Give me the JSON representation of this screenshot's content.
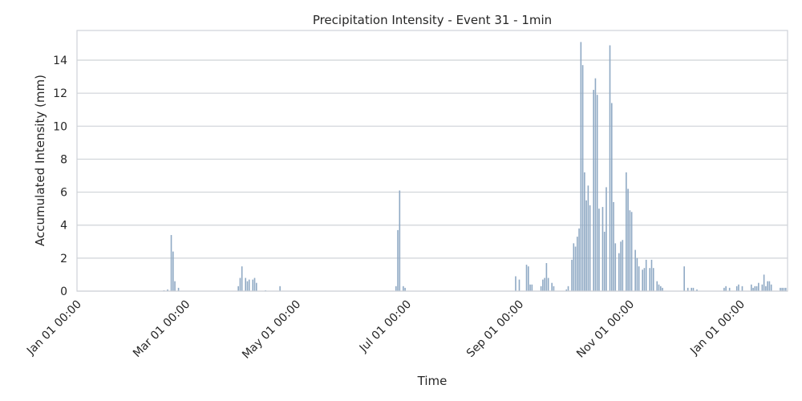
{
  "chart_data": {
    "type": "bar",
    "title": "Precipitation Intensity - Event 31 - 1min",
    "xlabel": "Time",
    "ylabel": "Accumulated Intensity (mm)",
    "ylim": [
      0,
      15.8
    ],
    "y_ticks": [
      0,
      2,
      4,
      6,
      8,
      10,
      12,
      14
    ],
    "x_tick_labels": [
      "Jan 01 00:00",
      "Mar 01 00:00",
      "May 01 00:00",
      "Jul 01 00:00",
      "Sep 01 00:00",
      "Nov 01 00:00",
      "Jan 01 00:00"
    ],
    "x_tick_dates": [
      "2000-01-01",
      "2000-03-01",
      "2000-05-01",
      "2000-07-01",
      "2000-09-01",
      "2000-11-01",
      "2001-01-01"
    ],
    "x_range": [
      "2000-01-01",
      "2001-01-27"
    ],
    "grid": "y",
    "legend": "none",
    "series_color": "#8fa9c4",
    "points": [
      {
        "x": "2000-02-18",
        "y": 0.05
      },
      {
        "x": "2000-02-20",
        "y": 0.1
      },
      {
        "x": "2000-02-22",
        "y": 3.4
      },
      {
        "x": "2000-02-23",
        "y": 2.4
      },
      {
        "x": "2000-02-24",
        "y": 0.6
      },
      {
        "x": "2000-02-26",
        "y": 0.2
      },
      {
        "x": "2000-03-30",
        "y": 0.3
      },
      {
        "x": "2000-03-31",
        "y": 0.8
      },
      {
        "x": "2000-04-01",
        "y": 1.5
      },
      {
        "x": "2000-04-03",
        "y": 0.8
      },
      {
        "x": "2000-04-04",
        "y": 0.6
      },
      {
        "x": "2000-04-05",
        "y": 0.7
      },
      {
        "x": "2000-04-07",
        "y": 0.7
      },
      {
        "x": "2000-04-08",
        "y": 0.8
      },
      {
        "x": "2000-04-09",
        "y": 0.5
      },
      {
        "x": "2000-04-14",
        "y": 0.05
      },
      {
        "x": "2000-04-22",
        "y": 0.3
      },
      {
        "x": "2000-06-25",
        "y": 0.3
      },
      {
        "x": "2000-06-26",
        "y": 3.7
      },
      {
        "x": "2000-06-27",
        "y": 6.1
      },
      {
        "x": "2000-06-29",
        "y": 0.3
      },
      {
        "x": "2000-06-30",
        "y": 0.2
      },
      {
        "x": "2000-08-30",
        "y": 0.9
      },
      {
        "x": "2000-09-01",
        "y": 0.7
      },
      {
        "x": "2000-09-05",
        "y": 1.6
      },
      {
        "x": "2000-09-06",
        "y": 1.5
      },
      {
        "x": "2000-09-07",
        "y": 0.4
      },
      {
        "x": "2000-09-08",
        "y": 0.4
      },
      {
        "x": "2000-09-13",
        "y": 0.3
      },
      {
        "x": "2000-09-14",
        "y": 0.7
      },
      {
        "x": "2000-09-15",
        "y": 0.8
      },
      {
        "x": "2000-09-16",
        "y": 1.7
      },
      {
        "x": "2000-09-17",
        "y": 0.8
      },
      {
        "x": "2000-09-19",
        "y": 0.5
      },
      {
        "x": "2000-09-20",
        "y": 0.3
      },
      {
        "x": "2000-09-27",
        "y": 0.1
      },
      {
        "x": "2000-09-28",
        "y": 0.3
      },
      {
        "x": "2000-09-30",
        "y": 1.9
      },
      {
        "x": "2000-10-01",
        "y": 2.9
      },
      {
        "x": "2000-10-02",
        "y": 2.7
      },
      {
        "x": "2000-10-03",
        "y": 3.3
      },
      {
        "x": "2000-10-04",
        "y": 3.8
      },
      {
        "x": "2000-10-05",
        "y": 15.1
      },
      {
        "x": "2000-10-06",
        "y": 13.7
      },
      {
        "x": "2000-10-07",
        "y": 7.2
      },
      {
        "x": "2000-10-08",
        "y": 5.5
      },
      {
        "x": "2000-10-09",
        "y": 6.4
      },
      {
        "x": "2000-10-10",
        "y": 5.2
      },
      {
        "x": "2000-10-12",
        "y": 12.2
      },
      {
        "x": "2000-10-13",
        "y": 12.9
      },
      {
        "x": "2000-10-14",
        "y": 11.9
      },
      {
        "x": "2000-10-15",
        "y": 5.0
      },
      {
        "x": "2000-10-17",
        "y": 5.1
      },
      {
        "x": "2000-10-18",
        "y": 3.6
      },
      {
        "x": "2000-10-19",
        "y": 6.3
      },
      {
        "x": "2000-10-21",
        "y": 14.9
      },
      {
        "x": "2000-10-22",
        "y": 11.4
      },
      {
        "x": "2000-10-23",
        "y": 5.4
      },
      {
        "x": "2000-10-24",
        "y": 2.9
      },
      {
        "x": "2000-10-26",
        "y": 2.3
      },
      {
        "x": "2000-10-27",
        "y": 3.0
      },
      {
        "x": "2000-10-28",
        "y": 3.1
      },
      {
        "x": "2000-10-30",
        "y": 7.2
      },
      {
        "x": "2000-10-31",
        "y": 6.2
      },
      {
        "x": "2000-11-01",
        "y": 4.9
      },
      {
        "x": "2000-11-02",
        "y": 4.8
      },
      {
        "x": "2000-11-04",
        "y": 2.5
      },
      {
        "x": "2000-11-05",
        "y": 2.0
      },
      {
        "x": "2000-11-06",
        "y": 1.5
      },
      {
        "x": "2000-11-08",
        "y": 1.3
      },
      {
        "x": "2000-11-09",
        "y": 1.4
      },
      {
        "x": "2000-11-10",
        "y": 1.9
      },
      {
        "x": "2000-11-12",
        "y": 1.4
      },
      {
        "x": "2000-11-13",
        "y": 1.9
      },
      {
        "x": "2000-11-14",
        "y": 1.4
      },
      {
        "x": "2000-11-16",
        "y": 0.6
      },
      {
        "x": "2000-11-17",
        "y": 0.4
      },
      {
        "x": "2000-11-18",
        "y": 0.3
      },
      {
        "x": "2000-11-19",
        "y": 0.2
      },
      {
        "x": "2000-12-01",
        "y": 1.5
      },
      {
        "x": "2000-12-03",
        "y": 0.2
      },
      {
        "x": "2000-12-05",
        "y": 0.2
      },
      {
        "x": "2000-12-06",
        "y": 0.2
      },
      {
        "x": "2000-12-08",
        "y": 0.1
      },
      {
        "x": "2000-12-23",
        "y": 0.2
      },
      {
        "x": "2000-12-24",
        "y": 0.3
      },
      {
        "x": "2000-12-26",
        "y": 0.2
      },
      {
        "x": "2000-12-30",
        "y": 0.3
      },
      {
        "x": "2000-12-31",
        "y": 0.4
      },
      {
        "x": "2001-01-02",
        "y": 0.3
      },
      {
        "x": "2001-01-07",
        "y": 0.4
      },
      {
        "x": "2001-01-08",
        "y": 0.2
      },
      {
        "x": "2001-01-09",
        "y": 0.3
      },
      {
        "x": "2001-01-10",
        "y": 0.3
      },
      {
        "x": "2001-01-11",
        "y": 0.5
      },
      {
        "x": "2001-01-13",
        "y": 0.4
      },
      {
        "x": "2001-01-14",
        "y": 1.0
      },
      {
        "x": "2001-01-15",
        "y": 0.3
      },
      {
        "x": "2001-01-16",
        "y": 0.6
      },
      {
        "x": "2001-01-17",
        "y": 0.6
      },
      {
        "x": "2001-01-18",
        "y": 0.4
      },
      {
        "x": "2001-01-23",
        "y": 0.2
      },
      {
        "x": "2001-01-24",
        "y": 0.2
      },
      {
        "x": "2001-01-25",
        "y": 0.2
      },
      {
        "x": "2001-01-26",
        "y": 0.2
      }
    ]
  }
}
